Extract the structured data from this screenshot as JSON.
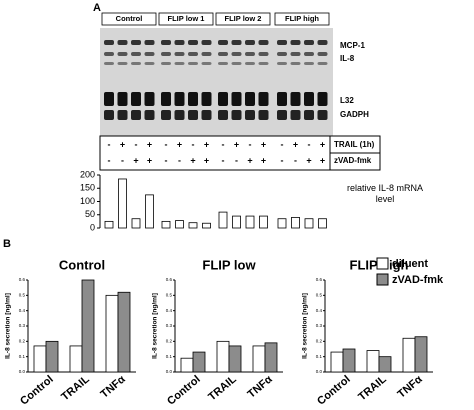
{
  "panel_a": {
    "label": "A",
    "groups": [
      "Control",
      "FLIP low 1",
      "FLIP low 2",
      "FLIP high"
    ],
    "bands": [
      "MCP-1",
      "IL-8",
      "L32",
      "GADPH"
    ],
    "treatments": [
      {
        "name": "TRAIL (1h)",
        "signs": [
          "-",
          "+",
          "-",
          "+",
          "-",
          "+",
          "-",
          "+",
          "-",
          "+",
          "-",
          "+",
          "-",
          "+",
          "-",
          "+"
        ]
      },
      {
        "name": "zVAD-fmk",
        "signs": [
          "-",
          "-",
          "+",
          "+",
          "-",
          "-",
          "+",
          "+",
          "-",
          "-",
          "+",
          "+",
          "-",
          "-",
          "+",
          "+"
        ]
      }
    ]
  },
  "panel_b": {
    "label": "B"
  },
  "chart_data": [
    {
      "type": "bar",
      "y_label": "relative IL-8 mRNA level",
      "color": "#ffffff",
      "values": [
        25,
        185,
        35,
        125,
        25,
        28,
        20,
        18,
        60,
        45,
        45,
        45,
        35,
        40,
        35,
        35
      ],
      "ylim": [
        0,
        200
      ],
      "yticks": [
        0,
        50,
        100,
        150,
        200
      ]
    },
    {
      "type": "grouped-bar",
      "title": "Control",
      "y_label": "IL-8 secretion [ng/ml]",
      "categories": [
        "Control",
        "TRAIL",
        "TNFα"
      ],
      "series": [
        {
          "name": "diluent",
          "color": "#ffffff",
          "values": [
            0.17,
            0.17,
            0.5
          ]
        },
        {
          "name": "zVAD-fmk",
          "color": "#8c8c8c",
          "values": [
            0.2,
            0.6,
            0.52
          ]
        }
      ],
      "ylim": [
        0,
        0.6
      ],
      "yticks": [
        {
          "value": 0,
          "label": "0.0"
        },
        {
          "value": 0.1,
          "label": "0.1"
        },
        {
          "value": 0.2,
          "label": "0.2"
        },
        {
          "value": 0.3,
          "label": "0.3"
        },
        {
          "value": 0.4,
          "label": "0.4"
        },
        {
          "value": 0.5,
          "label": "0.5"
        },
        {
          "value": 0.6,
          "label": "0.6"
        }
      ]
    },
    {
      "type": "grouped-bar",
      "title": "FLIP low",
      "y_label": "IL-8 secretion [ng/ml]",
      "categories": [
        "Control",
        "TRAIL",
        "TNFα"
      ],
      "series": [
        {
          "name": "diluent",
          "color": "#ffffff",
          "values": [
            0.09,
            0.2,
            0.17
          ]
        },
        {
          "name": "zVAD-fmk",
          "color": "#8c8c8c",
          "values": [
            0.13,
            0.17,
            0.19
          ]
        }
      ],
      "ylim": [
        0,
        0.6
      ],
      "yticks": [
        {
          "value": 0,
          "label": "0.0"
        },
        {
          "value": 0.1,
          "label": "0.1"
        },
        {
          "value": 0.2,
          "label": "0.2"
        },
        {
          "value": 0.3,
          "label": "0.3"
        },
        {
          "value": 0.4,
          "label": "0.4"
        },
        {
          "value": 0.5,
          "label": "0.5"
        },
        {
          "value": 0.6,
          "label": "0.6"
        }
      ]
    },
    {
      "type": "grouped-bar",
      "title": "FLIP high",
      "y_label": "IL-8 secretion [ng/ml]",
      "legend": "top-right",
      "categories": [
        "Control",
        "TRAIL",
        "TNFα"
      ],
      "series": [
        {
          "name": "diluent",
          "color": "#ffffff",
          "values": [
            0.13,
            0.14,
            0.22
          ]
        },
        {
          "name": "zVAD-fmk",
          "color": "#8c8c8c",
          "values": [
            0.15,
            0.1,
            0.23
          ]
        }
      ],
      "ylim": [
        0,
        0.6
      ],
      "yticks": [
        {
          "value": 0,
          "label": "0.0"
        },
        {
          "value": 0.1,
          "label": "0.1"
        },
        {
          "value": 0.2,
          "label": "0.2"
        },
        {
          "value": 0.3,
          "label": "0.3"
        },
        {
          "value": 0.4,
          "label": "0.4"
        },
        {
          "value": 0.5,
          "label": "0.5"
        },
        {
          "value": 0.6,
          "label": "0.6"
        }
      ]
    }
  ]
}
